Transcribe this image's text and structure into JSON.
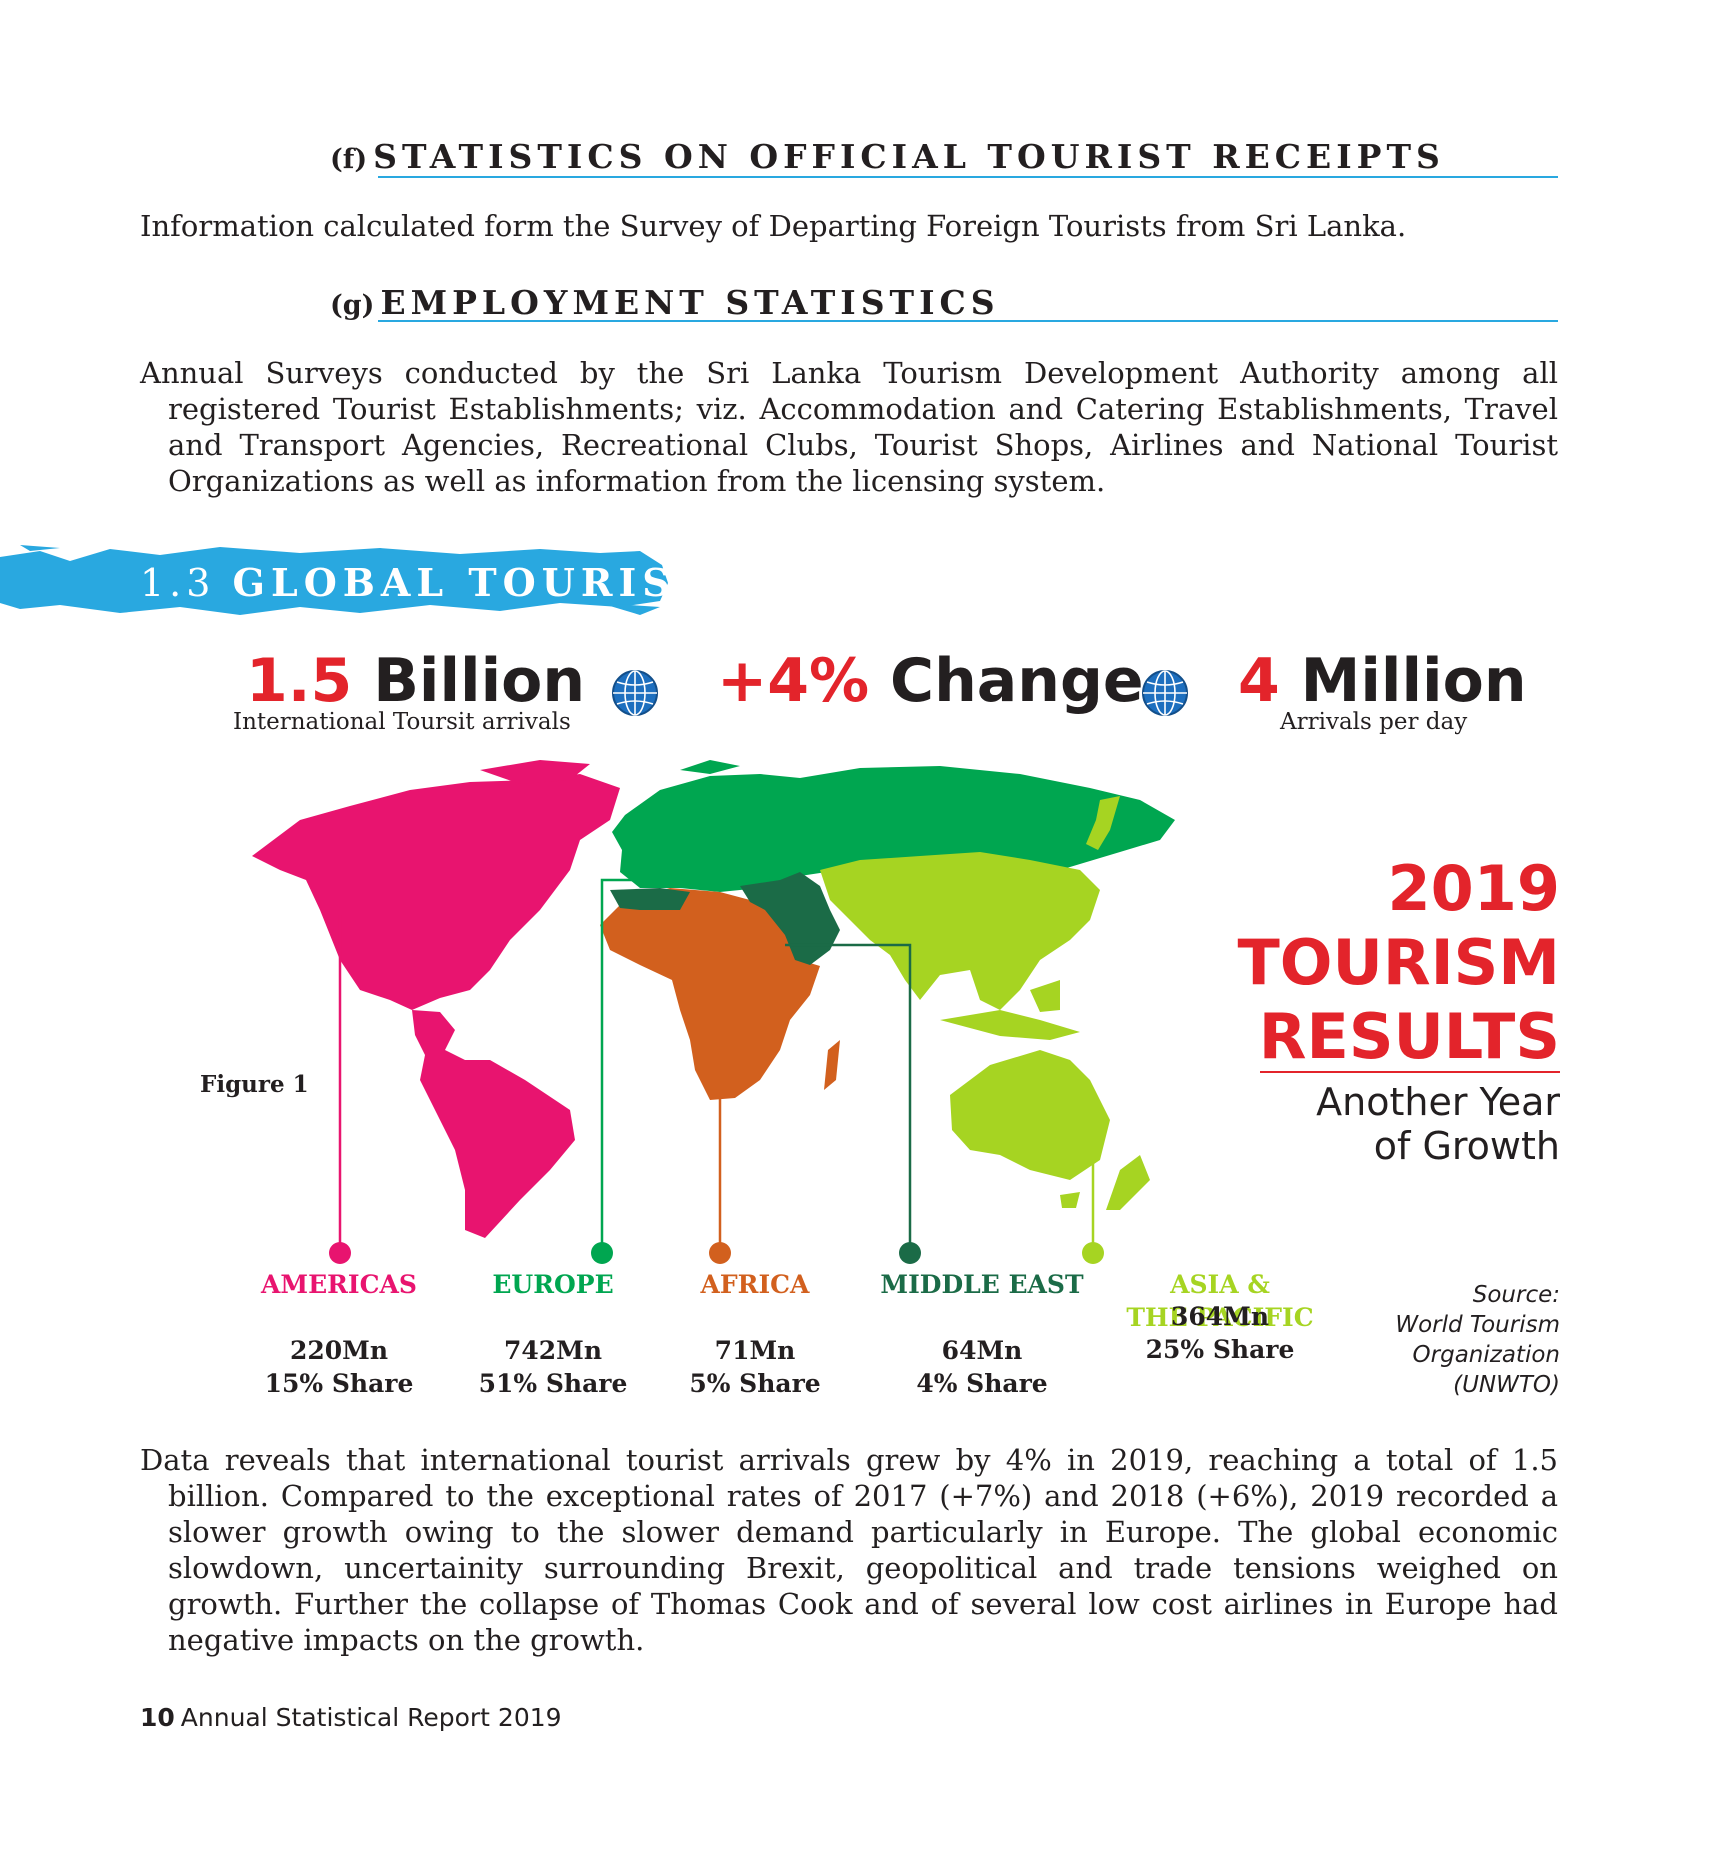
{
  "section_f": {
    "letter": "(f)",
    "title": "STATISTICS ON OFFICIAL TOURIST RECEIPTS",
    "text": "Information calculated form the Survey of Departing Foreign Tourists from Sri Lanka."
  },
  "section_g": {
    "letter": "(g)",
    "title": "EMPLOYMENT STATISTICS",
    "text": "Annual Surveys conducted by the Sri Lanka Tourism Development Authority among all registered Tourist Establishments; viz. Accommodation and Catering Establishments, Travel and Transport Agencies, Recreational Clubs, Tourist Shops, Airlines and National Tourist Organizations as well as information from the licensing system."
  },
  "banner": {
    "number": "1.3",
    "title": "GLOBAL TOURISM",
    "color": "#29a8e0"
  },
  "stats": {
    "arrivals": {
      "value": "1.5",
      "unit": "Billion",
      "caption": "International Toursit arrivals"
    },
    "change": {
      "value": "+4%",
      "unit": "Change"
    },
    "per_day": {
      "value": "4",
      "unit": "Million",
      "caption": "Arrivals per day"
    }
  },
  "results": {
    "year": "2019",
    "line1": "TOURISM",
    "line2": "RESULTS",
    "sub1": "Another Year",
    "sub2": "of Growth"
  },
  "figure_label": "Figure 1",
  "regions": [
    {
      "name": "AMERICAS",
      "arrivals": "220Mn",
      "share": "15% Share",
      "color": "#e8146f"
    },
    {
      "name": "EUROPE",
      "arrivals": "742Mn",
      "share": "51% Share",
      "color": "#00a650"
    },
    {
      "name": "AFRICA",
      "arrivals": "71Mn",
      "share": "5% Share",
      "color": "#d2601e"
    },
    {
      "name": "MIDDLE EAST",
      "arrivals": "64Mn",
      "share": "4% Share",
      "color": "#1b6b47"
    },
    {
      "name": "ASIA &\nTHE PACIFIC",
      "arrivals": "364Mn",
      "share": "25% Share",
      "color": "#a6d422"
    }
  ],
  "source": {
    "l1": "Source:",
    "l2": "World Tourism",
    "l3": "Organization",
    "l4": "(UNWTO)"
  },
  "body_paragraph": "Data reveals that international tourist arrivals grew by 4% in 2019, reaching a total of 1.5 billion. Compared to the exceptional rates of 2017 (+7%) and 2018 (+6%), 2019 recorded a slower growth owing to the slower demand particularly in Europe. The global economic slowdown, uncertainity surrounding Brexit, geopolitical and trade tensions weighed on growth. Further the collapse of Thomas Cook and of several low cost airlines in Europe had negative impacts on the growth.",
  "footer": {
    "page": "10",
    "title": "Annual Statistical Report 2019"
  }
}
